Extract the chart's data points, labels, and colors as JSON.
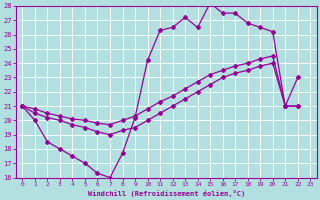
{
  "xlabel": "Windchill (Refroidissement éolien,°C)",
  "bg_color": "#b2e0e0",
  "grid_color": "#ffffff",
  "line_color": "#990099",
  "xlim": [
    -0.5,
    23.5
  ],
  "ylim": [
    16,
    28
  ],
  "xticks": [
    0,
    1,
    2,
    3,
    4,
    5,
    6,
    7,
    8,
    9,
    10,
    11,
    12,
    13,
    14,
    15,
    16,
    17,
    18,
    19,
    20,
    21,
    22,
    23
  ],
  "yticks": [
    16,
    17,
    18,
    19,
    20,
    21,
    22,
    23,
    24,
    25,
    26,
    27,
    28
  ],
  "series1_x": [
    0,
    1,
    2,
    3,
    4,
    5,
    6,
    7,
    8,
    9,
    10,
    11,
    12,
    13,
    14,
    15,
    16,
    17,
    18,
    19,
    20,
    21,
    22
  ],
  "series1_y": [
    21,
    20,
    18.5,
    18,
    17.5,
    17,
    16.3,
    16,
    17.7,
    20.2,
    24.2,
    26.3,
    26.5,
    27.2,
    26.5,
    28.2,
    27.5,
    27.5,
    26.8,
    26.5,
    26.2,
    21.0,
    23.0
  ],
  "series2_x": [
    0,
    1,
    2,
    3,
    4,
    5,
    6,
    7,
    8,
    9,
    10,
    11,
    12,
    13,
    14,
    15,
    16,
    17,
    18,
    19,
    20,
    21,
    22
  ],
  "series2_y": [
    21,
    20.8,
    20.5,
    20.3,
    20.1,
    20.0,
    19.8,
    19.7,
    20.0,
    20.3,
    20.8,
    21.3,
    21.7,
    22.2,
    22.7,
    23.2,
    23.5,
    23.8,
    24.0,
    24.3,
    24.5,
    21.0,
    21.0
  ],
  "series3_x": [
    0,
    1,
    2,
    3,
    4,
    5,
    6,
    7,
    8,
    9,
    10,
    11,
    12,
    13,
    14,
    15,
    16,
    17,
    18,
    19,
    20,
    21,
    22
  ],
  "series3_y": [
    21,
    20.5,
    20.2,
    20.0,
    19.7,
    19.5,
    19.2,
    19.0,
    19.3,
    19.5,
    20.0,
    20.5,
    21.0,
    21.5,
    22.0,
    22.5,
    23.0,
    23.3,
    23.5,
    23.8,
    24.0,
    21.0,
    21.0
  ]
}
